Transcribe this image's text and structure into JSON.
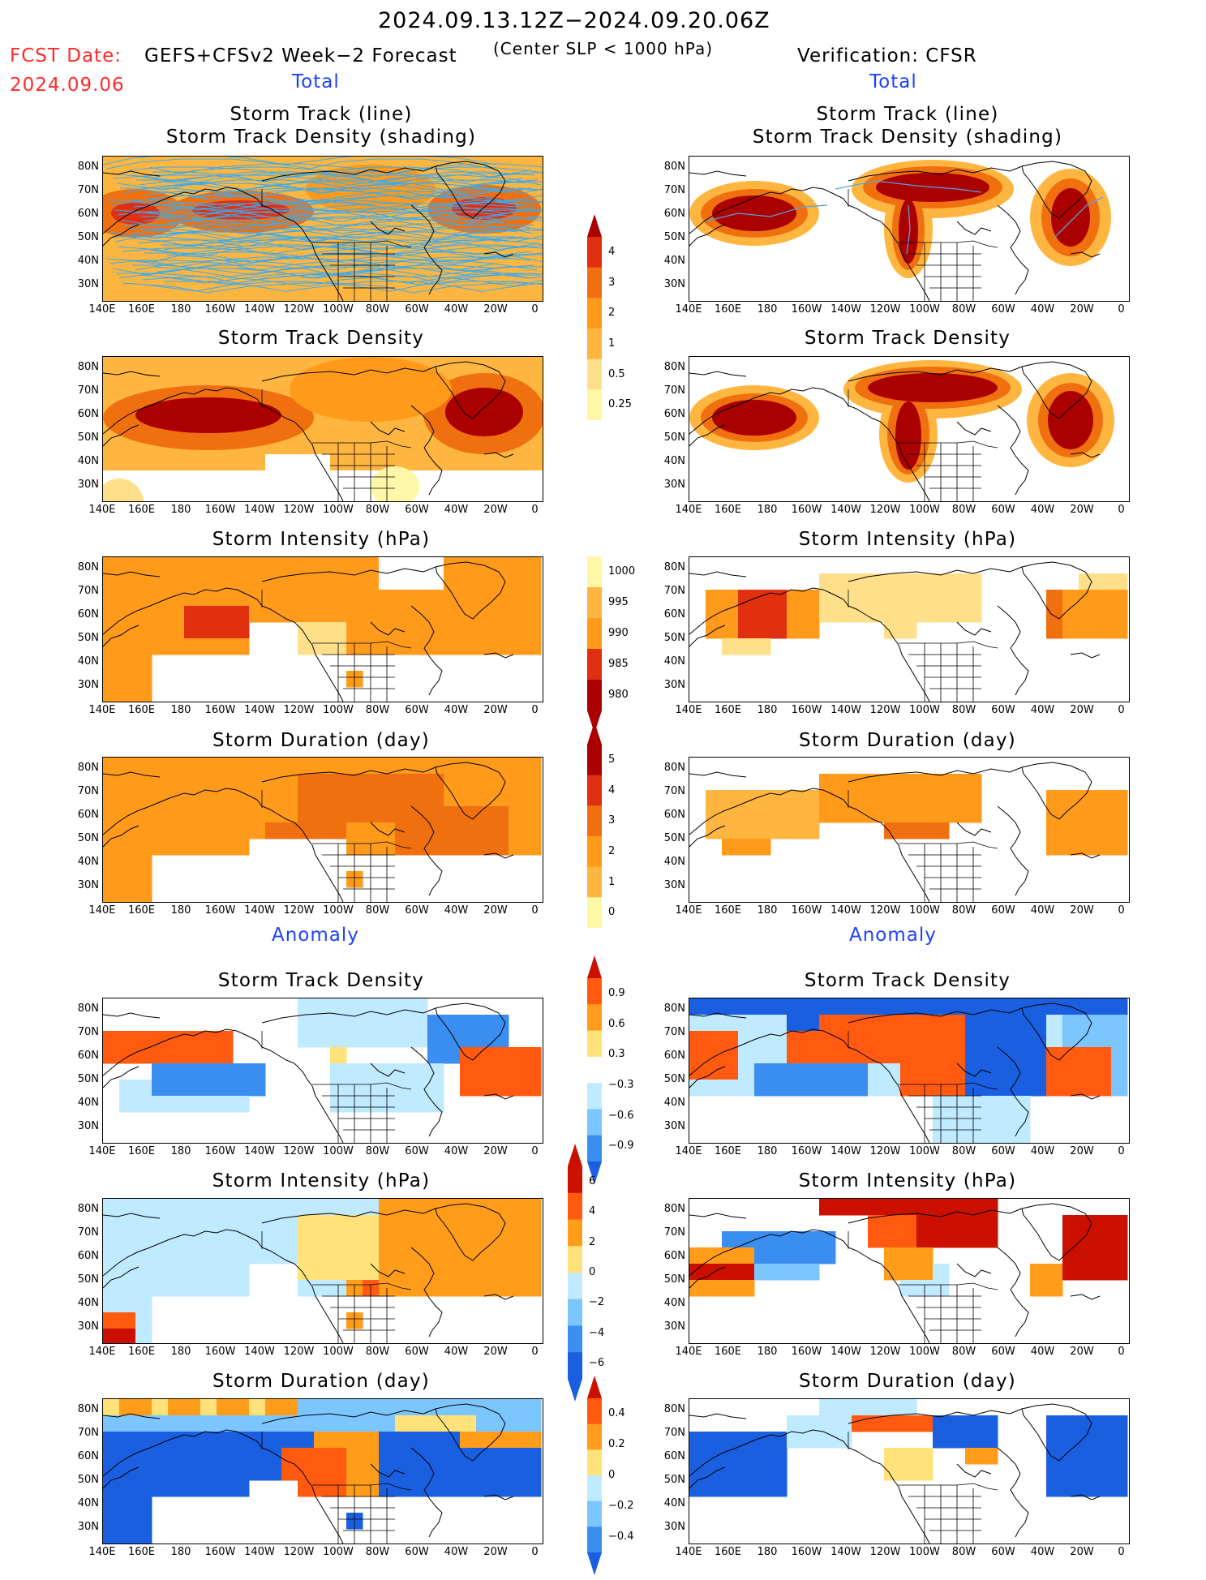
{
  "header": {
    "date_range": "2024.09.13.12Z−2024.09.20.06Z",
    "fcst_date_label": "FCST Date:",
    "fcst_date": "2024.09.06",
    "model": "GEFS+CFSv2 Week−2 Forecast",
    "criterion": "(Center SLP < 1000 hPa)",
    "verification": "Verification: CFSR"
  },
  "sections": {
    "total": "Total",
    "anomaly": "Anomaly"
  },
  "panel_titles": {
    "track_line": "Storm Track (line)",
    "track_shading": "Storm Track Density (shading)",
    "density": "Storm Track Density",
    "intensity": "Storm Intensity (hPa)",
    "duration": "Storm Duration (day)"
  },
  "axes": {
    "lat_ticks": [
      "80N",
      "70N",
      "60N",
      "50N",
      "40N",
      "30N"
    ],
    "lon_ticks": [
      "140E",
      "160E",
      "180",
      "160W",
      "140W",
      "120W",
      "100W",
      "80W",
      "60W",
      "40W",
      "20W",
      "0"
    ]
  },
  "colorbars": {
    "density_total": [
      "4",
      "3",
      "2",
      "1",
      "0.5",
      "0.25"
    ],
    "intensity_total": [
      "1000",
      "995",
      "990",
      "985",
      "980"
    ],
    "duration_total": [
      "5",
      "4",
      "3",
      "2",
      "1",
      "0"
    ],
    "density_anom": [
      "0.9",
      "0.6",
      "0.3",
      "−0.3",
      "−0.6",
      "−0.9"
    ],
    "intensity_anom": [
      "6",
      "4",
      "2",
      "0",
      "−2",
      "−4",
      "−6"
    ],
    "duration_anom": [
      "0.4",
      "0.2",
      "0",
      "−0.2",
      "−0.4"
    ]
  },
  "colors": {
    "total_scale": [
      "#fff7a8",
      "#ffe08a",
      "#ffb640",
      "#ff9a1a",
      "#f07010",
      "#e03010",
      "#aa0000"
    ],
    "anom_warm": [
      "#ffe27a",
      "#ff9c1a",
      "#ff5a10",
      "#cc1000"
    ],
    "anom_cool": [
      "#bfeaff",
      "#7cc6ff",
      "#3a8ef0",
      "#1a5fe0"
    ],
    "track_lines": "#3aaaf0",
    "forecast_label": "#ff2a2a",
    "section_label": "#1f3fff"
  }
}
